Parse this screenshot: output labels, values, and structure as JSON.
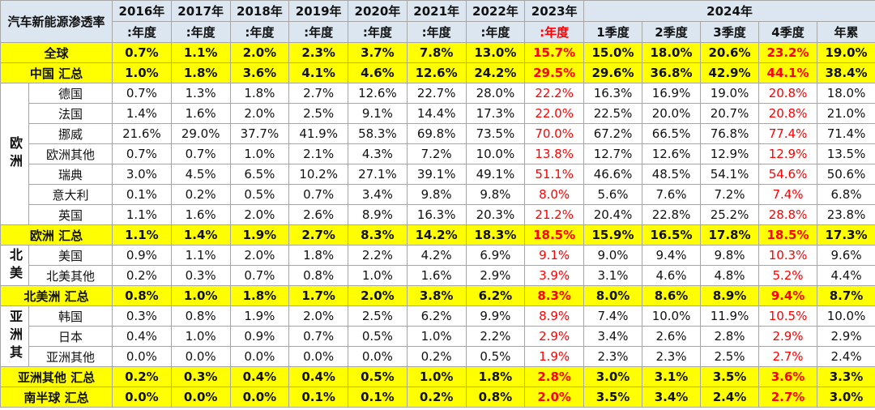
{
  "header": {
    "title": "汽车新能源渗透率",
    "years": [
      "2016年",
      "2017年",
      "2018年",
      "2019年",
      "2020年",
      "2021年",
      "2022年",
      "2023年"
    ],
    "periods": [
      ":年度",
      ":年度",
      ":年度",
      ":年度",
      ":年度",
      ":年度",
      ":年度",
      ":年度"
    ],
    "year_2024": "2024年",
    "quarters": [
      "1季度",
      "2季度",
      "3季度",
      "4季度",
      "年累"
    ]
  },
  "rows": [
    {
      "label": "全球",
      "values": [
        "0.7%",
        "1.1%",
        "2.0%",
        "2.3%",
        "3.7%",
        "7.8%",
        "13.0%",
        "15.7%",
        "15.0%",
        "18.0%",
        "20.6%",
        "23.2%",
        "19.0%"
      ]
    },
    {
      "label": "中国 汇总",
      "values": [
        "1.0%",
        "1.8%",
        "3.6%",
        "4.1%",
        "4.6%",
        "12.6%",
        "24.2%",
        "29.5%",
        "29.6%",
        "36.8%",
        "42.9%",
        "44.1%",
        "38.4%"
      ]
    },
    {
      "region": "欧洲",
      "countries": [
        {
          "name": "德国",
          "values": [
            "0.7%",
            "1.3%",
            "1.8%",
            "2.7%",
            "12.6%",
            "22.7%",
            "28.0%",
            "22.2%",
            "16.3%",
            "16.9%",
            "19.0%",
            "20.8%",
            "18.0%"
          ]
        },
        {
          "name": "法国",
          "values": [
            "1.4%",
            "1.6%",
            "2.0%",
            "2.5%",
            "9.1%",
            "14.4%",
            "17.3%",
            "22.0%",
            "22.5%",
            "20.0%",
            "20.7%",
            "20.8%",
            "21.0%"
          ]
        },
        {
          "name": "挪威",
          "values": [
            "21.6%",
            "29.0%",
            "37.7%",
            "41.9%",
            "58.3%",
            "69.8%",
            "73.5%",
            "70.0%",
            "67.2%",
            "66.5%",
            "76.8%",
            "77.4%",
            "71.4%"
          ]
        },
        {
          "name": "欧洲其他",
          "values": [
            "0.7%",
            "0.7%",
            "1.0%",
            "2.1%",
            "4.3%",
            "7.2%",
            "10.0%",
            "13.8%",
            "12.7%",
            "12.6%",
            "12.9%",
            "12.9%",
            "13.5%"
          ]
        },
        {
          "name": "瑞典",
          "values": [
            "3.0%",
            "4.5%",
            "6.5%",
            "10.2%",
            "27.1%",
            "39.1%",
            "49.1%",
            "51.1%",
            "46.6%",
            "48.5%",
            "54.1%",
            "54.6%",
            "50.6%"
          ]
        },
        {
          "name": "意大利",
          "values": [
            "0.1%",
            "0.2%",
            "0.5%",
            "0.7%",
            "3.4%",
            "9.8%",
            "9.8%",
            "8.0%",
            "5.6%",
            "7.6%",
            "7.2%",
            "7.4%",
            "6.8%"
          ]
        },
        {
          "name": "英国",
          "values": [
            "1.1%",
            "1.6%",
            "2.0%",
            "2.6%",
            "8.9%",
            "16.3%",
            "20.3%",
            "21.2%",
            "20.4%",
            "22.8%",
            "25.2%",
            "28.8%",
            "23.8%"
          ]
        }
      ]
    },
    {
      "label": "欧洲 汇总",
      "values": [
        "1.1%",
        "1.4%",
        "1.9%",
        "2.7%",
        "8.3%",
        "14.2%",
        "18.3%",
        "18.5%",
        "15.9%",
        "16.5%",
        "17.8%",
        "18.5%",
        "17.3%"
      ]
    },
    {
      "region": "北美",
      "countries": [
        {
          "name": "美国",
          "values": [
            "0.9%",
            "1.1%",
            "2.0%",
            "1.8%",
            "2.2%",
            "4.2%",
            "6.9%",
            "9.1%",
            "9.0%",
            "9.4%",
            "9.8%",
            "10.3%",
            "9.6%"
          ]
        },
        {
          "name": "北美其他",
          "values": [
            "0.2%",
            "0.3%",
            "0.7%",
            "0.8%",
            "1.0%",
            "1.6%",
            "2.9%",
            "3.9%",
            "3.1%",
            "4.6%",
            "4.8%",
            "5.2%",
            "4.4%"
          ]
        }
      ]
    },
    {
      "label": "北美洲 汇总",
      "values": [
        "0.8%",
        "1.0%",
        "1.8%",
        "1.7%",
        "2.0%",
        "3.8%",
        "6.2%",
        "8.3%",
        "8.0%",
        "8.6%",
        "8.9%",
        "9.4%",
        "8.7%"
      ]
    },
    {
      "region": "亚洲其",
      "countries": [
        {
          "name": "韩国",
          "values": [
            "0.3%",
            "0.8%",
            "1.9%",
            "2.0%",
            "2.5%",
            "6.2%",
            "9.9%",
            "8.9%",
            "7.4%",
            "10.0%",
            "11.9%",
            "10.5%",
            "10.0%"
          ]
        },
        {
          "name": "日本",
          "values": [
            "0.4%",
            "1.0%",
            "0.9%",
            "0.7%",
            "0.5%",
            "1.0%",
            "2.2%",
            "2.9%",
            "3.4%",
            "2.6%",
            "2.8%",
            "2.9%",
            "2.9%"
          ]
        },
        {
          "name": "亚洲其他",
          "values": [
            "0.0%",
            "0.0%",
            "0.0%",
            "0.0%",
            "0.0%",
            "0.2%",
            "0.5%",
            "1.9%",
            "2.3%",
            "2.3%",
            "2.5%",
            "2.7%",
            "2.4%"
          ]
        }
      ]
    },
    {
      "label": "亚洲其他 汇总",
      "values": [
        "0.2%",
        "0.3%",
        "0.4%",
        "0.4%",
        "0.5%",
        "1.0%",
        "1.8%",
        "2.8%",
        "3.0%",
        "3.1%",
        "3.5%",
        "3.6%",
        "3.3%"
      ]
    },
    {
      "label": "南半球 汇总",
      "values": [
        "0.0%",
        "0.0%",
        "0.0%",
        "0.1%",
        "0.1%",
        "0.2%",
        "0.8%",
        "2.0%",
        "3.5%",
        "3.4%",
        "2.4%",
        "2.7%",
        "3.0%"
      ]
    }
  ]
}
